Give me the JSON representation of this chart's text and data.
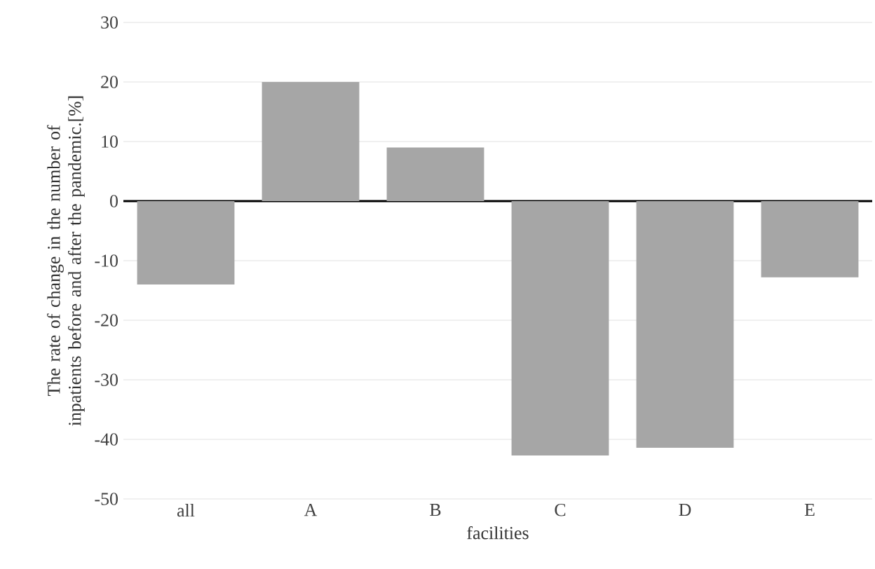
{
  "chart_data": {
    "type": "bar",
    "xlabel": "facilities",
    "ylabel": "The rate of change in the number of inpatients before and after the pandemic.[%]",
    "categories": [
      "all",
      "A",
      "B",
      "C",
      "D",
      "E"
    ],
    "values": [
      -14.0,
      20.0,
      9.0,
      -42.7,
      -41.4,
      -12.8
    ],
    "color": "#a6a6a6",
    "ylim": [
      -50,
      30
    ],
    "yticks": [
      -50,
      -40,
      -30,
      -20,
      -10,
      0,
      10,
      20,
      30
    ],
    "grid": "y"
  }
}
